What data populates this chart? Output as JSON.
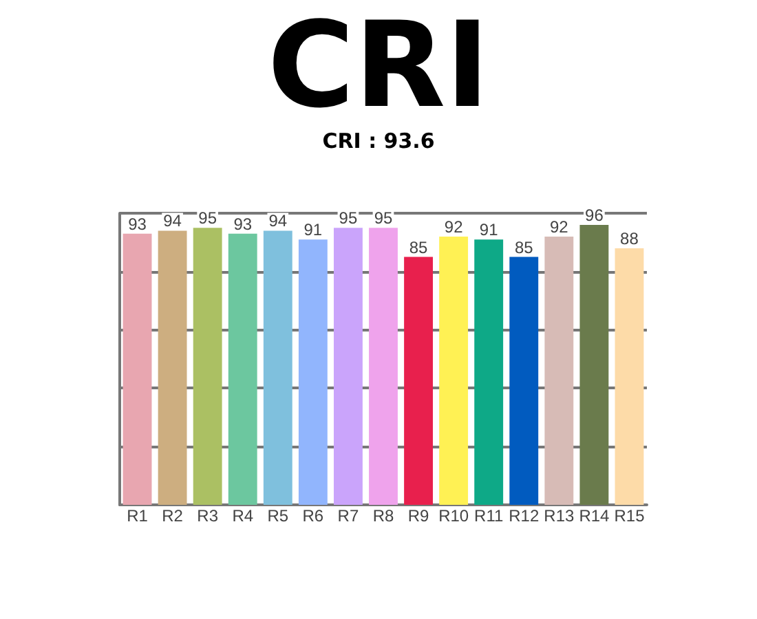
{
  "chart_data": {
    "type": "bar",
    "title": "CRI",
    "subtitle": "CRI : 93.6",
    "categories": [
      "R1",
      "R2",
      "R3",
      "R4",
      "R5",
      "R6",
      "R7",
      "R8",
      "R9",
      "R10",
      "R11",
      "R12",
      "R13",
      "R14",
      "R15"
    ],
    "values": [
      93,
      94,
      95,
      93,
      94,
      91,
      95,
      95,
      85,
      92,
      91,
      85,
      92,
      96,
      88
    ],
    "colors": [
      "#e8a6b0",
      "#cdae80",
      "#abc063",
      "#6cc79f",
      "#7fc0dd",
      "#91b5fd",
      "#caa4fb",
      "#efa3ec",
      "#e8204d",
      "#fff154",
      "#0ea987",
      "#015bbf",
      "#d7bbb6",
      "#6a7b4c",
      "#fddba8"
    ],
    "ylim": [
      0,
      100
    ],
    "yticks": [
      {
        "value": 0,
        "label": null
      },
      {
        "value": 20,
        "label": null
      },
      {
        "value": 40,
        "label": null
      },
      {
        "value": 60,
        "label": null
      },
      {
        "value": 80,
        "label": null
      },
      {
        "value": 100,
        "label": null
      }
    ],
    "tick_labels": "x",
    "grid": "y",
    "data_labels": true
  }
}
